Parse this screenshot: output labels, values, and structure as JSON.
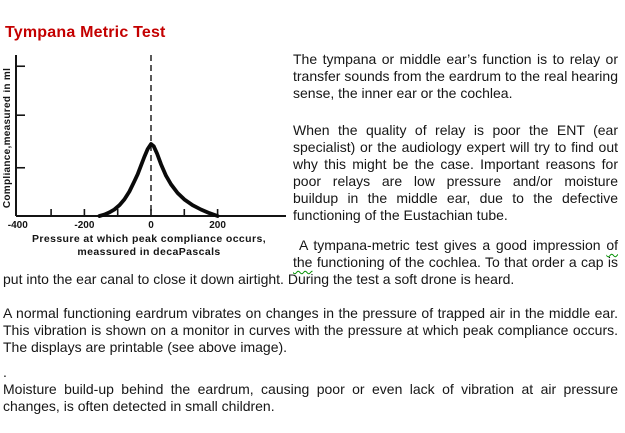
{
  "page": {
    "title": "Tympana Metric Test",
    "title_color": "#c40000",
    "squiggle_color": "#009000"
  },
  "article": {
    "p1": "The tympana or middle ear’s function is to relay or transfer sounds from the eardrum to the real hearing sense, the inner ear or the cochlea.",
    "p2": "When the quality of relay is poor the ENT (ear specialist) or the audiology expert will try to find out why this might be the case. Important reasons for poor relays are low pressure and/or moisture buildup in the middle ear, due to the defective functioning of the Eustachian tube.",
    "p3": {
      "s1": "A tympana-metric test gives a good impression ",
      "s2": "of",
      "s3": " ",
      "s4": "the",
      "s5": " functioning of the cochlea. To that order a cap is put into the ear canal to close it down airtight. During the test a soft drone is heard."
    },
    "p4": "A normal functioning eardrum vibrates on changes in the pressure of trapped air in the middle ear. This vibration is shown on a monitor in curves with the pressure at which peak compliance occurs. The displays are printable (see above image).",
    "p5": ".",
    "p6": "Moisture build-up behind the eardrum, causing poor or even lack of vibration at air pressure changes, is often detected in small children."
  },
  "chart_data": {
    "type": "line",
    "title": "",
    "xlabel": "Pressure at which peak compliance occurs, meassured in decaPascals",
    "ylabel": "Compliance,measured in ml",
    "x_axis": {
      "label_line1": "Pressure at which peak compliance occurs,",
      "label_line2": "meassured in decaPascals",
      "tick_labels": [
        "-400",
        "-200",
        "0",
        "200"
      ],
      "tick_values": [
        -400,
        -200,
        0,
        200
      ],
      "minor_tick_values": [
        -300,
        -200,
        -100,
        0,
        100,
        200
      ],
      "range_daPa": [
        -400,
        400
      ]
    },
    "y_axis": {
      "label": "Compliance,measured in ml",
      "tick_rel_values": [
        2.08,
        1.4,
        0.67
      ],
      "numeric_labels_shown": false
    },
    "dashed_guide_x": 0,
    "peak": {
      "pressure_daPa": 0,
      "compliance_rel": 1.0
    },
    "curve": {
      "pressure_daPa": [
        -155,
        -140,
        -125,
        -110,
        -95,
        -80,
        -65,
        -50,
        -40,
        -30,
        -20,
        -10,
        0,
        8,
        18,
        30,
        45,
        60,
        80,
        100,
        125,
        150,
        175,
        200
      ],
      "compliance_rel": [
        0,
        0.02,
        0.05,
        0.09,
        0.15,
        0.23,
        0.34,
        0.48,
        0.58,
        0.7,
        0.82,
        0.93,
        1.0,
        0.97,
        0.87,
        0.72,
        0.56,
        0.44,
        0.32,
        0.23,
        0.15,
        0.09,
        0.04,
        0
      ]
    },
    "grid": false,
    "legend": false
  }
}
